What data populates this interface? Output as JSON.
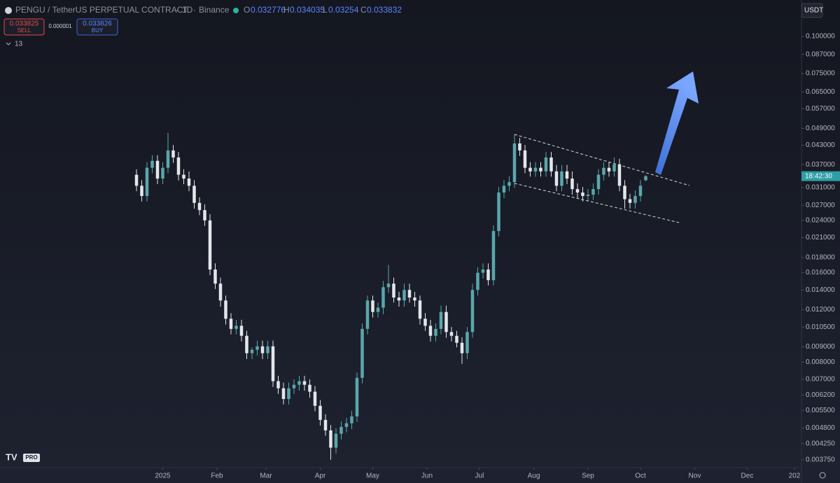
{
  "header": {
    "symbol": "PENGU / TetherUS PERPETUAL CONTRACT",
    "interval": "1D",
    "exchange": "Binance",
    "ohlc_labels": [
      "O",
      "H",
      "L",
      "C"
    ],
    "sell": {
      "price": 0.033825,
      "label": "SELL"
    },
    "spread": "0.000001",
    "buy": {
      "price": 0.033826,
      "label": "BUY"
    },
    "indicators_count": 13,
    "currency": "USDT",
    "countdown": "18:42:30",
    "logo_badge": "PRO"
  },
  "chart_data": {
    "type": "candlestick",
    "up_color": "#5aa7ab",
    "down_color": "#e4e6ea",
    "log_scale": true,
    "grid": false,
    "ylim": [
      0.00353,
      0.1326
    ],
    "yticks": [
      {
        "value": 0.1,
        "label": "0.100000"
      },
      {
        "value": 0.087,
        "label": "0.087000"
      },
      {
        "value": 0.075,
        "label": "0.075000"
      },
      {
        "value": 0.065,
        "label": "0.065000"
      },
      {
        "value": 0.057,
        "label": "0.057000"
      },
      {
        "value": 0.049,
        "label": "0.049000"
      },
      {
        "value": 0.043,
        "label": "0.043000"
      },
      {
        "value": 0.037,
        "label": "0.037000"
      },
      {
        "value": 0.031,
        "label": "0.031000"
      },
      {
        "value": 0.027,
        "label": "0.027000"
      },
      {
        "value": 0.024,
        "label": "0.024000"
      },
      {
        "value": 0.021,
        "label": "0.021000"
      },
      {
        "value": 0.018,
        "label": "0.018000"
      },
      {
        "value": 0.016,
        "label": "0.016000"
      },
      {
        "value": 0.014,
        "label": "0.014000"
      },
      {
        "value": 0.012,
        "label": "0.012000"
      },
      {
        "value": 0.0105,
        "label": "0.010500"
      },
      {
        "value": 0.009,
        "label": "0.009000"
      },
      {
        "value": 0.008,
        "label": "0.008000"
      },
      {
        "value": 0.007,
        "label": "0.007000"
      },
      {
        "value": 0.0062,
        "label": "0.006200"
      },
      {
        "value": 0.0055,
        "label": "0.005500"
      },
      {
        "value": 0.0048,
        "label": "0.004800"
      },
      {
        "value": 0.00425,
        "label": "0.004250"
      },
      {
        "value": 0.00375,
        "label": "0.003750"
      }
    ],
    "xlim": [
      -26,
      126.67
    ],
    "xticks": [
      {
        "value": 5,
        "label": "2025"
      },
      {
        "value": 15.33,
        "label": "Feb"
      },
      {
        "value": 24.67,
        "label": "Mar"
      },
      {
        "value": 35,
        "label": "Apr"
      },
      {
        "value": 45,
        "label": "May"
      },
      {
        "value": 55.33,
        "label": "Jun"
      },
      {
        "value": 65.33,
        "label": "Jul"
      },
      {
        "value": 75.67,
        "label": "Aug"
      },
      {
        "value": 86,
        "label": "Sep"
      },
      {
        "value": 96,
        "label": "Oct"
      },
      {
        "value": 106.33,
        "label": "Nov"
      },
      {
        "value": 116.33,
        "label": "Dec"
      },
      {
        "value": 125.33,
        "label": "202"
      }
    ],
    "candles": [
      [
        0.0342,
        0.0357,
        0.0301,
        0.0314
      ],
      [
        0.0314,
        0.0328,
        0.0278,
        0.029
      ],
      [
        0.029,
        0.0377,
        0.0278,
        0.0361
      ],
      [
        0.0361,
        0.0398,
        0.0346,
        0.0381
      ],
      [
        0.0381,
        0.0398,
        0.0318,
        0.0332
      ],
      [
        0.0332,
        0.0377,
        0.0318,
        0.0361
      ],
      [
        0.0361,
        0.0473,
        0.0346,
        0.0413
      ],
      [
        0.0413,
        0.0431,
        0.0375,
        0.0391
      ],
      [
        0.0391,
        0.0408,
        0.0327,
        0.0342
      ],
      [
        0.0342,
        0.0357,
        0.0318,
        0.0332
      ],
      [
        0.0332,
        0.0351,
        0.0301,
        0.0314
      ],
      [
        0.0314,
        0.0328,
        0.0263,
        0.0275
      ],
      [
        0.0275,
        0.0287,
        0.025,
        0.026
      ],
      [
        0.026,
        0.0272,
        0.023,
        0.024
      ],
      [
        0.024,
        0.0252,
        0.0157,
        0.0164
      ],
      [
        0.0164,
        0.0172,
        0.0141,
        0.0147
      ],
      [
        0.0147,
        0.0154,
        0.0123,
        0.0129
      ],
      [
        0.0129,
        0.0134,
        0.0107,
        0.0112
      ],
      [
        0.0112,
        0.0117,
        0.00992,
        0.01035
      ],
      [
        0.01035,
        0.0111,
        0.00992,
        0.0106
      ],
      [
        0.0106,
        0.0111,
        0.00939,
        0.00981
      ],
      [
        0.00981,
        0.0102,
        0.00819,
        0.00857
      ],
      [
        0.00857,
        0.00897,
        0.00819,
        0.0088
      ],
      [
        0.0088,
        0.00945,
        0.00842,
        0.00904
      ],
      [
        0.00904,
        0.00945,
        0.00819,
        0.00857
      ],
      [
        0.00857,
        0.00945,
        0.00819,
        0.00904
      ],
      [
        0.00904,
        0.00945,
        0.0066,
        0.0069
      ],
      [
        0.0069,
        0.00719,
        0.00625,
        0.00653
      ],
      [
        0.00653,
        0.00682,
        0.00576,
        0.00601
      ],
      [
        0.00601,
        0.00682,
        0.00576,
        0.00653
      ],
      [
        0.00653,
        0.007,
        0.00625,
        0.00671
      ],
      [
        0.00671,
        0.00719,
        0.00641,
        0.0069
      ],
      [
        0.0069,
        0.00719,
        0.00641,
        0.00671
      ],
      [
        0.00671,
        0.007,
        0.00607,
        0.00636
      ],
      [
        0.00636,
        0.00664,
        0.00546,
        0.0057
      ],
      [
        0.0057,
        0.00596,
        0.00489,
        0.00511
      ],
      [
        0.00511,
        0.00534,
        0.00452,
        0.00471
      ],
      [
        0.00471,
        0.00491,
        0.00375,
        0.00412
      ],
      [
        0.00412,
        0.00479,
        0.00394,
        0.00459
      ],
      [
        0.00459,
        0.00506,
        0.00439,
        0.00484
      ],
      [
        0.00484,
        0.00519,
        0.00464,
        0.00498
      ],
      [
        0.00498,
        0.00549,
        0.00476,
        0.00525
      ],
      [
        0.00525,
        0.00738,
        0.00503,
        0.00708
      ],
      [
        0.00708,
        0.0108,
        0.00678,
        0.01035
      ],
      [
        0.01035,
        0.0134,
        0.00992,
        0.0129
      ],
      [
        0.0129,
        0.0134,
        0.0113,
        0.0118
      ],
      [
        0.0118,
        0.0127,
        0.0113,
        0.0122
      ],
      [
        0.0122,
        0.015,
        0.0116,
        0.0143
      ],
      [
        0.0143,
        0.017,
        0.0137,
        0.0147
      ],
      [
        0.0147,
        0.0154,
        0.0127,
        0.0132
      ],
      [
        0.0132,
        0.0138,
        0.0123,
        0.0129
      ],
      [
        0.0129,
        0.0147,
        0.0123,
        0.014
      ],
      [
        0.014,
        0.0147,
        0.0127,
        0.0132
      ],
      [
        0.0132,
        0.0138,
        0.0123,
        0.0129
      ],
      [
        0.0129,
        0.0134,
        0.0107,
        0.0112
      ],
      [
        0.0112,
        0.0117,
        0.0102,
        0.0106
      ],
      [
        0.0106,
        0.0111,
        0.00939,
        0.00981
      ],
      [
        0.00981,
        0.0108,
        0.00939,
        0.01035
      ],
      [
        0.01035,
        0.0124,
        0.00992,
        0.0118
      ],
      [
        0.0118,
        0.0124,
        0.00966,
        0.0101
      ],
      [
        0.0101,
        0.0105,
        0.00939,
        0.00981
      ],
      [
        0.00981,
        0.0102,
        0.00897,
        0.00929
      ],
      [
        0.00929,
        0.0097,
        0.00789,
        0.00857
      ],
      [
        0.00857,
        0.0105,
        0.00819,
        0.0101
      ],
      [
        0.0101,
        0.0147,
        0.00966,
        0.014
      ],
      [
        0.014,
        0.0167,
        0.0134,
        0.016
      ],
      [
        0.016,
        0.0172,
        0.0153,
        0.0164
      ],
      [
        0.0164,
        0.0172,
        0.0145,
        0.0151
      ],
      [
        0.0151,
        0.0231,
        0.0145,
        0.0221
      ],
      [
        0.0221,
        0.0311,
        0.0212,
        0.0298
      ],
      [
        0.0298,
        0.0328,
        0.0285,
        0.0314
      ],
      [
        0.0314,
        0.0338,
        0.0301,
        0.0323
      ],
      [
        0.0323,
        0.0468,
        0.0309,
        0.0436
      ],
      [
        0.0436,
        0.0455,
        0.0396,
        0.0413
      ],
      [
        0.0413,
        0.0431,
        0.0346,
        0.0361
      ],
      [
        0.0361,
        0.0377,
        0.0337,
        0.0351
      ],
      [
        0.0351,
        0.0377,
        0.0337,
        0.0361
      ],
      [
        0.0361,
        0.0377,
        0.0337,
        0.0351
      ],
      [
        0.0351,
        0.0408,
        0.0337,
        0.0391
      ],
      [
        0.0391,
        0.0408,
        0.0337,
        0.0351
      ],
      [
        0.0351,
        0.0369,
        0.0301,
        0.0314
      ],
      [
        0.0314,
        0.0369,
        0.0301,
        0.0351
      ],
      [
        0.0351,
        0.0369,
        0.0318,
        0.0332
      ],
      [
        0.0332,
        0.0351,
        0.0293,
        0.0306
      ],
      [
        0.0306,
        0.032,
        0.0285,
        0.0298
      ],
      [
        0.0298,
        0.0311,
        0.0278,
        0.029
      ],
      [
        0.029,
        0.0306,
        0.0278,
        0.0293
      ],
      [
        0.0293,
        0.032,
        0.0281,
        0.0306
      ],
      [
        0.0306,
        0.0357,
        0.0293,
        0.0342
      ],
      [
        0.0342,
        0.0377,
        0.0327,
        0.0361
      ],
      [
        0.0361,
        0.0377,
        0.0337,
        0.0351
      ],
      [
        0.0351,
        0.0391,
        0.0337,
        0.0371
      ],
      [
        0.0371,
        0.0387,
        0.0301,
        0.0314
      ],
      [
        0.0314,
        0.0328,
        0.0263,
        0.0283
      ],
      [
        0.0283,
        0.0295,
        0.0263,
        0.0275
      ],
      [
        0.0275,
        0.0303,
        0.0263,
        0.029
      ],
      [
        0.029,
        0.0328,
        0.0278,
        0.0314
      ],
      [
        0.032776,
        0.034035,
        0.03254,
        0.033832
      ]
    ]
  }
}
